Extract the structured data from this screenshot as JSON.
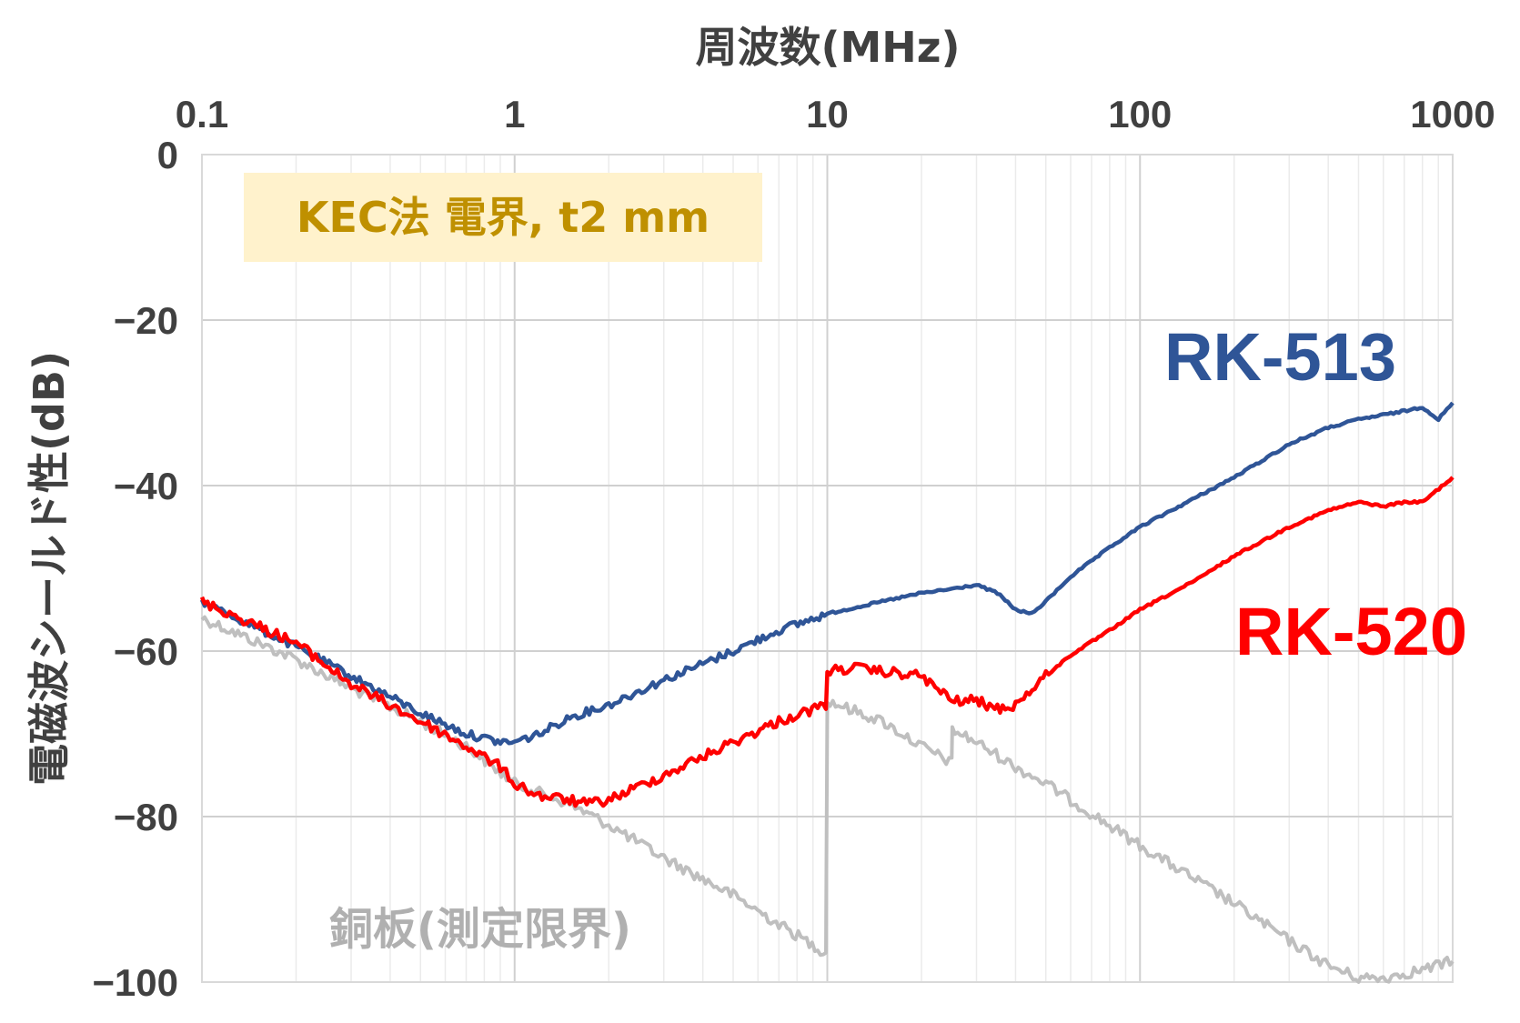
{
  "chart_data": {
    "type": "line",
    "xlabel": "周波数(MHz)",
    "ylabel": "電磁波シールド性(dB)",
    "xscale": "log",
    "xlim": [
      0.1,
      1000
    ],
    "ylim": [
      -100,
      0
    ],
    "x_ticks": [
      "0.1",
      "1",
      "10",
      "100",
      "1000"
    ],
    "y_ticks": [
      "0",
      "−20",
      "−40",
      "−60",
      "−80",
      "−100"
    ],
    "x_axis_position": "top",
    "grid": true,
    "annotation": "KEC法 電界, t2 mm",
    "colors": {
      "RK-513": "#2f5597",
      "RK-520": "#ff0000",
      "銅板(測定限界)": "#bfbfbf",
      "annotation_bg": "#fff2cc",
      "annotation_text": "#bf9000"
    },
    "series": [
      {
        "name": "RK-513",
        "x": [
          0.1,
          0.2,
          0.3,
          0.5,
          0.7,
          0.9,
          1,
          1.2,
          1.5,
          2,
          3,
          5,
          7,
          10,
          15,
          20,
          25,
          30,
          35,
          40,
          45,
          50,
          60,
          80,
          100,
          150,
          200,
          300,
          400,
          500,
          700,
          800,
          900,
          1000
        ],
        "y": [
          -54,
          -59.5,
          -63,
          -67.5,
          -70,
          -71,
          -71,
          -70,
          -68,
          -66.5,
          -63.5,
          -60,
          -57.5,
          -55.5,
          -54,
          -53,
          -52.5,
          -52,
          -53,
          -55,
          -55.5,
          -54,
          -51,
          -47.5,
          -45,
          -41.5,
          -39,
          -35,
          -33,
          -32,
          -31,
          -30.5,
          -32,
          -30
        ]
      },
      {
        "name": "RK-520",
        "x": [
          0.1,
          0.2,
          0.3,
          0.5,
          0.7,
          0.9,
          1,
          1.2,
          1.5,
          1.7,
          2,
          3,
          5,
          7,
          9.9,
          10,
          12,
          15,
          20,
          25,
          30,
          35,
          40,
          50,
          60,
          80,
          100,
          150,
          200,
          300,
          400,
          500,
          600,
          700,
          800,
          1000
        ],
        "y": [
          -54,
          -59,
          -64,
          -68.5,
          -71.5,
          -74,
          -76,
          -77.5,
          -78,
          -78.5,
          -78,
          -75,
          -71,
          -68.5,
          -66.5,
          -62.5,
          -62,
          -62.5,
          -63,
          -66,
          -66,
          -67,
          -66.5,
          -63,
          -60.5,
          -57.5,
          -55,
          -51.5,
          -48.5,
          -45,
          -43,
          -42,
          -42.5,
          -42,
          -42,
          -39
        ]
      },
      {
        "name": "銅板(測定限界)",
        "x": [
          0.1,
          0.2,
          0.3,
          0.5,
          0.7,
          1,
          1.5,
          2,
          3,
          5,
          7,
          9.9,
          10,
          15,
          20,
          25,
          25.1,
          30,
          40,
          50,
          60,
          100,
          200,
          300,
          400,
          500,
          600,
          800,
          1000
        ],
        "y": [
          -56,
          -61,
          -64.5,
          -68.5,
          -71.5,
          -76,
          -78.5,
          -81,
          -85,
          -89.5,
          -93,
          -96.5,
          -66,
          -68.5,
          -71.5,
          -73.5,
          -69.5,
          -71,
          -74,
          -76,
          -78,
          -83.5,
          -90.5,
          -95,
          -98,
          -99.5,
          -99.5,
          -98.5,
          -97.5
        ]
      }
    ]
  }
}
